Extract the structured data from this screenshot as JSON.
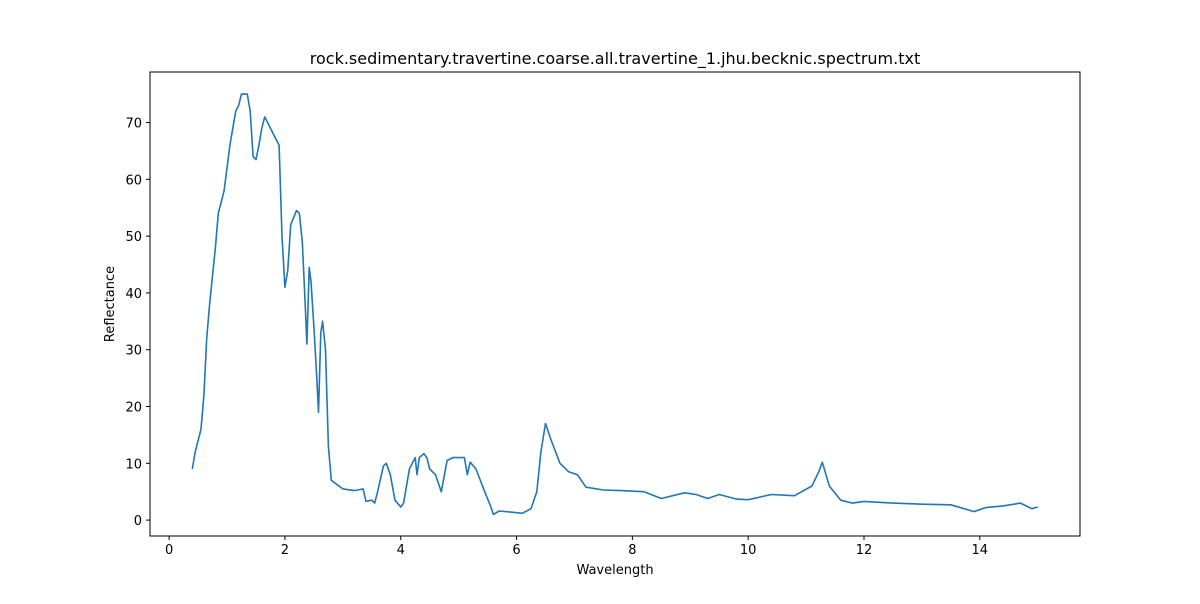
{
  "chart_data": {
    "type": "line",
    "title": "rock.sedimentary.travertine.coarse.all.travertine_1.jhu.becknic.spectrum.txt",
    "xlabel": "Wavelength",
    "ylabel": "Reflectance",
    "x": [
      0.4,
      0.45,
      0.55,
      0.6,
      0.65,
      0.7,
      0.8,
      0.85,
      0.95,
      1.0,
      1.05,
      1.1,
      1.15,
      1.2,
      1.25,
      1.35,
      1.4,
      1.45,
      1.5,
      1.55,
      1.6,
      1.65,
      1.7,
      1.8,
      1.9,
      1.95,
      2.0,
      2.05,
      2.1,
      2.2,
      2.25,
      2.3,
      2.35,
      2.38,
      2.42,
      2.45,
      2.5,
      2.55,
      2.58,
      2.62,
      2.65,
      2.7,
      2.75,
      2.8,
      3.0,
      3.2,
      3.35,
      3.4,
      3.5,
      3.55,
      3.6,
      3.7,
      3.75,
      3.82,
      3.9,
      4.0,
      4.05,
      4.15,
      4.25,
      4.28,
      4.32,
      4.4,
      4.45,
      4.5,
      4.6,
      4.7,
      4.8,
      4.9,
      5.1,
      5.15,
      5.2,
      5.3,
      5.45,
      5.55,
      5.6,
      5.7,
      5.9,
      6.1,
      6.25,
      6.35,
      6.42,
      6.5,
      6.6,
      6.75,
      6.9,
      7.05,
      7.2,
      7.5,
      7.8,
      8.2,
      8.5,
      8.9,
      9.1,
      9.3,
      9.5,
      9.8,
      10.0,
      10.4,
      10.8,
      11.1,
      11.22,
      11.28,
      11.4,
      11.6,
      11.8,
      12.0,
      12.5,
      13.0,
      13.5,
      13.9,
      14.1,
      14.4,
      14.7,
      14.9,
      15.0
    ],
    "series": [
      {
        "color": "#1f77b4",
        "values": [
          9,
          12,
          16,
          22,
          32,
          38,
          48,
          54,
          58,
          62,
          66,
          69,
          72,
          73,
          75,
          75,
          72,
          64,
          63.5,
          66,
          69,
          71,
          70,
          68,
          66,
          50,
          41,
          44,
          52,
          54.5,
          54,
          49,
          38,
          31,
          44.5,
          42,
          34,
          25,
          19,
          33,
          35,
          30,
          13,
          7,
          5.5,
          5.2,
          5.5,
          3.3,
          3.5,
          3,
          5,
          9.5,
          10,
          8,
          3.5,
          2.3,
          3,
          9,
          11,
          8,
          11,
          11.7,
          11,
          9,
          8,
          5,
          10.5,
          11,
          11,
          8,
          10.2,
          9,
          5,
          2.5,
          1,
          1.6,
          1.4,
          1.2,
          2,
          5,
          12,
          17,
          14,
          10,
          8.5,
          8,
          5.8,
          5.3,
          5.2,
          5,
          3.8,
          4.8,
          4.5,
          3.8,
          4.5,
          3.7,
          3.6,
          4.5,
          4.3,
          6,
          8.5,
          10.2,
          6,
          3.5,
          3,
          3.3,
          3,
          2.8,
          2.7,
          1.5,
          2.2,
          2.5,
          3,
          2,
          2.3
        ]
      }
    ],
    "xlim": [
      -0.33,
      15.73
    ],
    "ylim": [
      -2.8,
      78.9
    ],
    "xticks": [
      0,
      2,
      4,
      6,
      8,
      10,
      12,
      14
    ],
    "yticks": [
      0,
      10,
      20,
      30,
      40,
      50,
      60,
      70
    ]
  }
}
